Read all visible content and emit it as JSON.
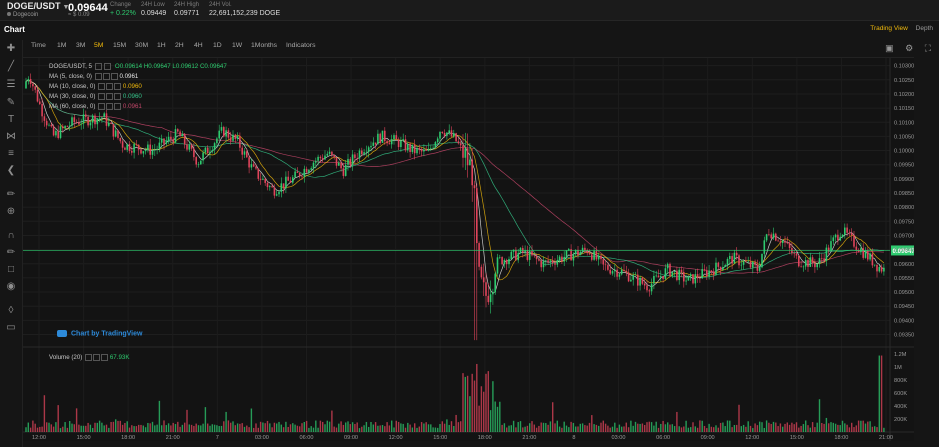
{
  "header": {
    "pair": "DOGE/USDT",
    "coin_name": "Dogecoin",
    "last_price": "0.09644",
    "last_price_sub": "≈ $ 0.09",
    "change_label": "Change",
    "change_value": "+ 0.22%",
    "low_label": "24H Low",
    "low_value": "0.09449",
    "high_label": "24H High",
    "high_value": "0.09771",
    "vol_label": "24H Vol.",
    "vol_value": "22,691,152,239 DOGE"
  },
  "chart_title": "Chart",
  "view_tabs": [
    "Trading View",
    "Depth"
  ],
  "timeframes": [
    "Time",
    "1M",
    "3M",
    "5M",
    "15M",
    "30M",
    "1H",
    "2H",
    "4H",
    "1D",
    "1W",
    "1Months",
    "Indicators"
  ],
  "active_timeframe": "5M",
  "toolbar_icons": [
    "camera-icon",
    "settings-icon",
    "fullscreen-icon"
  ],
  "left_tools": [
    "crosshair-icon",
    "trend-line-icon",
    "fib-icon",
    "brush-icon",
    "text-icon",
    "pattern-icon",
    "measure-icon",
    "arrow-icon",
    "ruler-icon",
    "zoom-icon",
    "magnet-icon",
    "lock-drawing-icon",
    "lock-icon",
    "eye-icon",
    "layers-icon",
    "trash-icon"
  ],
  "legend": {
    "symbol": "DOGE/USDT, 5",
    "open": "O0.09614",
    "high": "H0.09647",
    "low": "L0.09612",
    "close": "C0.09647",
    "ma1_label": "MA (5, close, 0)",
    "ma1_value": "0.0961",
    "ma2_label": "MA (10, close, 0)",
    "ma2_value": "0.0960",
    "ma3_label": "MA (30, close, 0)",
    "ma3_value": "0.0960",
    "ma4_label": "MA (60, close, 0)",
    "ma4_value": "0.0961",
    "volume_label": "Volume (20)",
    "volume_value": "67.93K"
  },
  "tv_badge": "Chart by TradingView",
  "current_price_tag": "0.09647",
  "colors": {
    "up": "#2ecb6f",
    "down": "#e0445b",
    "accent": "#f0b90b",
    "ma5": "#e8e8e8",
    "ma10": "#f0b90b",
    "ma30": "#35c48a",
    "ma60": "#c4476a"
  },
  "chart_data": {
    "type": "candlestick",
    "price_ticks": [
      "0.10300",
      "0.10250",
      "0.10200",
      "0.10150",
      "0.10100",
      "0.10050",
      "0.10000",
      "0.09950",
      "0.09900",
      "0.09850",
      "0.09800",
      "0.09750",
      "0.09700",
      "0.09650",
      "0.09600",
      "0.09550",
      "0.09500",
      "0.09450",
      "0.09400",
      "0.09350"
    ],
    "price_range": [
      0.0932,
      0.1032
    ],
    "volume_ticks": [
      "1.2M",
      "1M",
      "800K",
      "600K",
      "400K",
      "200K"
    ],
    "volume_range": [
      0,
      1250000
    ],
    "time_ticks": [
      "12:00",
      "15:00",
      "18:00",
      "21:00",
      "7",
      "03:00",
      "06:00",
      "09:00",
      "12:00",
      "15:00",
      "18:00",
      "21:00",
      "8",
      "03:00",
      "06:00",
      "09:00",
      "12:00",
      "15:00",
      "18:00",
      "21:00"
    ],
    "price_anchors": [
      [
        0,
        0.1022
      ],
      [
        6,
        0.1027
      ],
      [
        18,
        0.1015
      ],
      [
        30,
        0.1005
      ],
      [
        50,
        0.101
      ],
      [
        80,
        0.1012
      ],
      [
        100,
        0.1002
      ],
      [
        130,
        0.1
      ],
      [
        155,
        0.1006
      ],
      [
        175,
        0.0996
      ],
      [
        200,
        0.1007
      ],
      [
        215,
        0.1003
      ],
      [
        230,
        0.0993
      ],
      [
        250,
        0.0986
      ],
      [
        270,
        0.099
      ],
      [
        290,
        0.0996
      ],
      [
        305,
        0.0999
      ],
      [
        320,
        0.0993
      ],
      [
        340,
        0.1001
      ],
      [
        358,
        0.1005
      ],
      [
        375,
        0.1003
      ],
      [
        390,
        0.1
      ],
      [
        405,
        0.0999
      ],
      [
        418,
        0.1008
      ],
      [
        432,
        0.1004
      ],
      [
        442,
        0.0998
      ],
      [
        450,
        0.0992
      ],
      [
        455,
        0.0955
      ],
      [
        462,
        0.0948
      ],
      [
        475,
        0.0961
      ],
      [
        500,
        0.0964
      ],
      [
        520,
        0.096
      ],
      [
        545,
        0.0963
      ],
      [
        565,
        0.0965
      ],
      [
        580,
        0.0959
      ],
      [
        600,
        0.0957
      ],
      [
        625,
        0.0952
      ],
      [
        645,
        0.0958
      ],
      [
        665,
        0.0954
      ],
      [
        690,
        0.0958
      ],
      [
        710,
        0.0962
      ],
      [
        735,
        0.0958
      ],
      [
        745,
        0.0972
      ],
      [
        760,
        0.0968
      ],
      [
        775,
        0.0961
      ],
      [
        795,
        0.096
      ],
      [
        818,
        0.0972
      ],
      [
        835,
        0.0966
      ],
      [
        855,
        0.0959
      ],
      [
        878,
        0.0955
      ],
      [
        885,
        0.0958
      ],
      [
        891,
        0.0965
      ]
    ]
  }
}
